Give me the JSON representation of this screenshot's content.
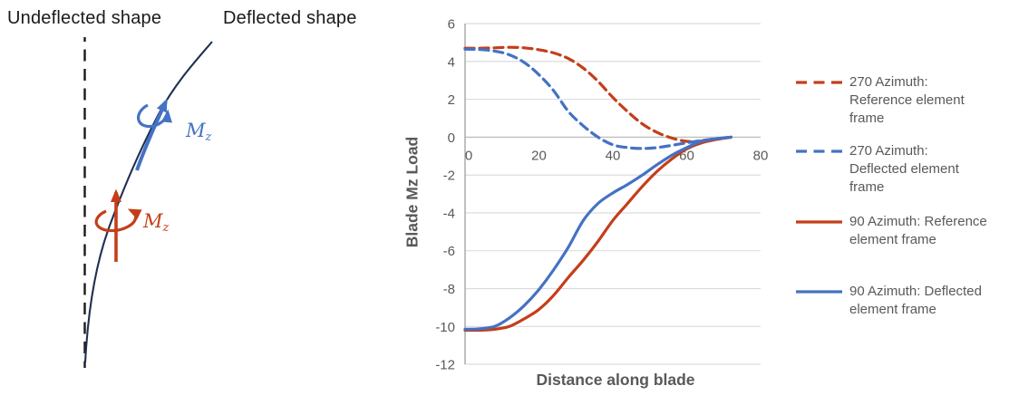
{
  "diagram": {
    "undeflected_label": "Undeflected shape",
    "deflected_label": "Deflected shape",
    "moment_symbol": "M",
    "moment_subscript": "z",
    "colors": {
      "reference_red": "#C43E1A",
      "deflected_blue": "#4472C4",
      "blade_curve_navy": "#1F3050",
      "undeflected_line_black": "#1A1A1A"
    }
  },
  "chart_data": {
    "type": "line",
    "title": "",
    "xlabel": "Distance along blade",
    "ylabel": "Blade Mz Load",
    "xlim": [
      0,
      80
    ],
    "ylim": [
      -12,
      6
    ],
    "x_ticks": [
      0,
      20,
      40,
      60,
      80
    ],
    "y_ticks": [
      6,
      4,
      2,
      0,
      -2,
      -4,
      -6,
      -8,
      -10,
      -12
    ],
    "grid": true,
    "legend_position": "right",
    "x": [
      0,
      4,
      8,
      12,
      16,
      20,
      24,
      28,
      32,
      36,
      40,
      44,
      48,
      52,
      56,
      60,
      64,
      68,
      72
    ],
    "series": [
      {
        "name": "270 Azimuth: Reference element frame",
        "legend_label": "270 Azimuth:\nReference element\nframe",
        "color": "#C43E1A",
        "dash": true,
        "values": [
          4.7,
          4.7,
          4.72,
          4.75,
          4.72,
          4.62,
          4.45,
          4.15,
          3.65,
          2.95,
          2.1,
          1.35,
          0.7,
          0.25,
          -0.05,
          -0.22,
          -0.2,
          -0.1,
          0
        ]
      },
      {
        "name": "270 Azimuth: Deflected element frame",
        "legend_label": "270 Azimuth:\nDeflected element\nframe",
        "color": "#4472C4",
        "dash": true,
        "values": [
          4.65,
          4.63,
          4.55,
          4.35,
          3.95,
          3.3,
          2.45,
          1.35,
          0.6,
          0,
          -0.4,
          -0.55,
          -0.6,
          -0.55,
          -0.43,
          -0.3,
          -0.18,
          -0.08,
          0
        ]
      },
      {
        "name": "90 Azimuth: Reference element frame",
        "legend_label": "90 Azimuth: Reference\nelement frame",
        "color": "#C43E1A",
        "dash": false,
        "values": [
          -10.2,
          -10.2,
          -10.15,
          -10,
          -9.6,
          -9.1,
          -8.35,
          -7.4,
          -6.5,
          -5.5,
          -4.4,
          -3.5,
          -2.6,
          -1.8,
          -1.15,
          -0.62,
          -0.3,
          -0.12,
          0
        ]
      },
      {
        "name": "90 Azimuth: Deflected element frame",
        "legend_label": "90 Azimuth: Deflected\nelement frame",
        "color": "#4472C4",
        "dash": false,
        "values": [
          -10.15,
          -10.12,
          -10,
          -9.55,
          -8.9,
          -8.05,
          -7,
          -5.8,
          -4.4,
          -3.5,
          -2.95,
          -2.5,
          -2,
          -1.45,
          -0.95,
          -0.55,
          -0.22,
          -0.08,
          0
        ]
      }
    ],
    "styles": {
      "gridline": "#D9D9D9",
      "zero_line": "#BFBFBF",
      "axis_line": "#A6A6A6",
      "text": "#595959"
    }
  }
}
